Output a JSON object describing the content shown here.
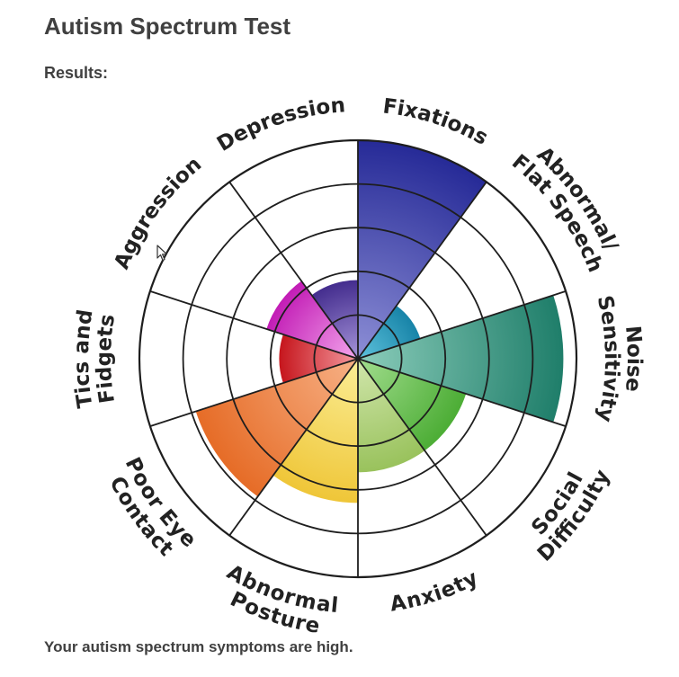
{
  "page": {
    "title": "Autism Spectrum Test",
    "results_label": "Results:",
    "summary": "Your autism spectrum symptoms are high."
  },
  "chart_data": {
    "type": "polar-area",
    "levels": 5,
    "max": 5,
    "categories": [
      {
        "label": [
          "Fixations"
        ],
        "value": 5,
        "colors": [
          "#8d8fd6",
          "#262a97"
        ]
      },
      {
        "label": [
          "Abnormal/",
          "Flat Speech"
        ],
        "value": 1.5,
        "colors": [
          "#5fc3dd",
          "#1884a8"
        ]
      },
      {
        "label": [
          "Noise",
          "Sensitivity"
        ],
        "value": 4.7,
        "colors": [
          "#8ccdbb",
          "#1f7e6a"
        ]
      },
      {
        "label": [
          "Social",
          "Difficulty"
        ],
        "value": 2.6,
        "colors": [
          "#a2dd8e",
          "#4cad35"
        ]
      },
      {
        "label": [
          "Anxiety"
        ],
        "value": 2.6,
        "colors": [
          "#d1e6ac",
          "#99c25c"
        ]
      },
      {
        "label": [
          "Abnormal",
          "Posture"
        ],
        "value": 3.3,
        "colors": [
          "#fbee96",
          "#efc638"
        ]
      },
      {
        "label": [
          "Poor Eye",
          "Contact"
        ],
        "value": 3.9,
        "colors": [
          "#f7b186",
          "#e66c27"
        ]
      },
      {
        "label": [
          "Tics and",
          "Fidgets"
        ],
        "value": 1.8,
        "colors": [
          "#f49aa0",
          "#c6161d"
        ]
      },
      {
        "label": [
          "Aggression"
        ],
        "value": 2.2,
        "colors": [
          "#f3a6ec",
          "#c21cb5"
        ]
      },
      {
        "label": [
          "Depression"
        ],
        "value": 1.8,
        "colors": [
          "#a695da",
          "#442d8e"
        ]
      }
    ]
  }
}
